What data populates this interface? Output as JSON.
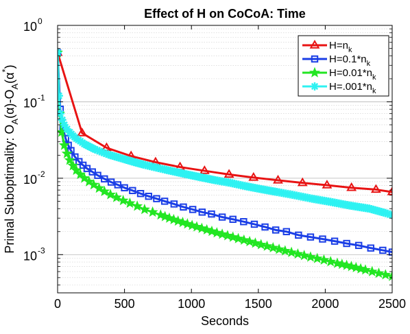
{
  "chart_data": {
    "type": "line",
    "title": "Effect of H on CoCoA: Time",
    "xlabel": "Seconds",
    "ylabel_parts": [
      "Primal Suboptimality: O",
      "A",
      "(α)-O",
      "A",
      "(α",
      "*",
      ")"
    ],
    "xlim": [
      0,
      2500
    ],
    "ylim_log10": [
      -3.5,
      0
    ],
    "y_scale": "log",
    "grid": "y-minor-dotted",
    "legend_position": "top-right",
    "x_ticks": [
      0,
      500,
      1000,
      1500,
      2000,
      2500
    ],
    "x_tick_labels": [
      "0",
      "500",
      "1000",
      "1500",
      "2000",
      "2500"
    ],
    "y_ticks": [
      -3,
      -2,
      -1,
      0
    ],
    "y_tick_labels": [
      {
        "base": "10",
        "exp": "-3"
      },
      {
        "base": "10",
        "exp": "-2"
      },
      {
        "base": "10",
        "exp": "-1"
      },
      {
        "base": "10",
        "exp": "0"
      }
    ],
    "series": [
      {
        "name_parts": [
          "H=n",
          "k",
          ""
        ],
        "color": "#e81313",
        "marker": "triangle",
        "x": [
          0,
          183,
          366,
          549,
          732,
          915,
          1098,
          1281,
          1464,
          1647,
          1830,
          2013,
          2196,
          2379,
          2500
        ],
        "y": [
          0.44,
          0.039,
          0.025,
          0.0195,
          0.0162,
          0.014,
          0.0125,
          0.0112,
          0.0102,
          0.0094,
          0.0087,
          0.0081,
          0.0075,
          0.0071,
          0.0066
        ]
      },
      {
        "name_parts": [
          "H=0.1*n",
          "k",
          ""
        ],
        "color": "#1a3ee6",
        "marker": "square",
        "x": [
          0,
          20,
          40,
          60,
          80,
          100,
          130,
          160,
          190,
          220,
          260,
          300,
          350,
          400,
          450,
          500,
          560,
          620,
          680,
          740,
          800,
          870,
          940,
          1010,
          1080,
          1150,
          1230,
          1310,
          1390,
          1470,
          1550,
          1630,
          1710,
          1800,
          1890,
          1980,
          2070,
          2160,
          2250,
          2340,
          2430,
          2500
        ],
        "y": [
          0.44,
          0.08,
          0.045,
          0.033,
          0.027,
          0.023,
          0.019,
          0.0165,
          0.0148,
          0.0134,
          0.0121,
          0.0109,
          0.0098,
          0.0089,
          0.0082,
          0.0075,
          0.0069,
          0.0063,
          0.0058,
          0.0054,
          0.005,
          0.0046,
          0.0042,
          0.0039,
          0.0036,
          0.0034,
          0.0031,
          0.0029,
          0.0027,
          0.0025,
          0.0023,
          0.0021,
          0.002,
          0.0018,
          0.0017,
          0.0016,
          0.0015,
          0.0014,
          0.00132,
          0.00122,
          0.00114,
          0.00108
        ]
      },
      {
        "name_parts": [
          "H=0.01*n",
          "k",
          ""
        ],
        "color": "#22e622",
        "marker": "star",
        "x": [
          0,
          15,
          30,
          50,
          70,
          90,
          115,
          140,
          170,
          200,
          235,
          270,
          310,
          350,
          395,
          440,
          490,
          540,
          595,
          650,
          710,
          770,
          835,
          900,
          970,
          1040,
          1115,
          1190,
          1270,
          1350,
          1435,
          1520,
          1610,
          1700,
          1795,
          1890,
          1990,
          2090,
          2195,
          2300,
          2400,
          2500
        ],
        "y": [
          0.44,
          0.07,
          0.04,
          0.027,
          0.021,
          0.0172,
          0.0146,
          0.0127,
          0.0112,
          0.01,
          0.009,
          0.0082,
          0.0074,
          0.0067,
          0.0061,
          0.0056,
          0.0051,
          0.0047,
          0.0043,
          0.0039,
          0.0036,
          0.0033,
          0.003,
          0.00275,
          0.00252,
          0.00231,
          0.00211,
          0.00193,
          0.00177,
          0.00162,
          0.00148,
          0.00135,
          0.00123,
          0.00112,
          0.00102,
          0.00093,
          0.00085,
          0.00077,
          0.0007,
          0.00063,
          0.00057,
          0.00052
        ]
      },
      {
        "name_parts": [
          "H=.001*n",
          "k",
          ""
        ],
        "color": "#2ef2f2",
        "marker": "asterisk",
        "x": [
          0,
          10,
          20,
          35,
          50,
          70,
          90,
          115,
          140,
          170,
          200,
          240,
          280,
          330,
          380,
          440,
          500,
          570,
          640,
          720,
          800,
          890,
          980,
          1080,
          1180,
          1290,
          1400,
          1520,
          1640,
          1770,
          1900,
          2040,
          2180,
          2330,
          2450,
          2500
        ],
        "y": [
          0.44,
          0.12,
          0.07,
          0.058,
          0.05,
          0.044,
          0.04,
          0.036,
          0.033,
          0.0305,
          0.028,
          0.0258,
          0.0238,
          0.022,
          0.0204,
          0.019,
          0.0177,
          0.0163,
          0.0151,
          0.014,
          0.013,
          0.012,
          0.0111,
          0.0102,
          0.0094,
          0.0087,
          0.0079,
          0.0072,
          0.0066,
          0.006,
          0.0054,
          0.0049,
          0.0044,
          0.004,
          0.0035,
          0.0033
        ]
      }
    ]
  }
}
